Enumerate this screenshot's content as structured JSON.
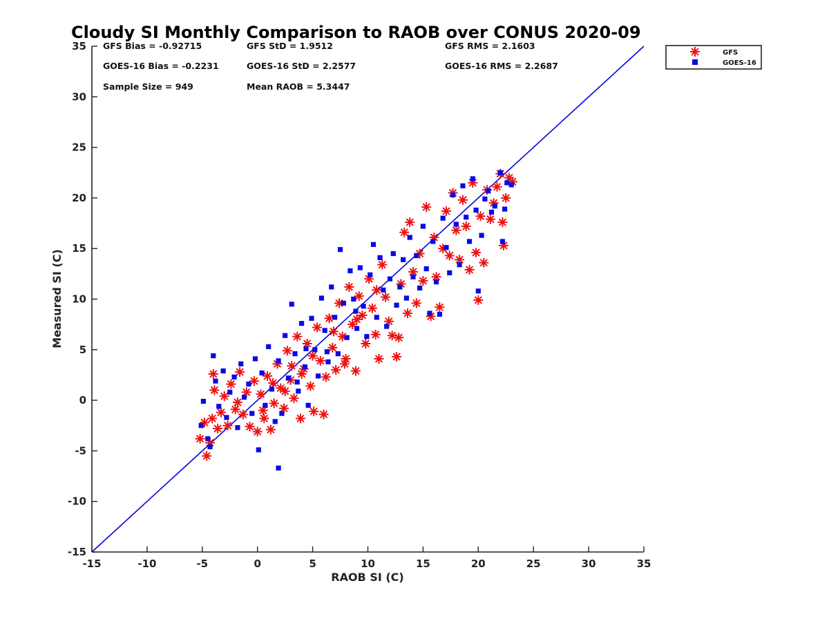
{
  "chart_data": {
    "type": "scatter",
    "title": "Cloudy SI Monthly Comparison to RAOB over CONUS 2020-09",
    "xlabel": "RAOB SI (C)",
    "ylabel": "Measured SI (C)",
    "xlim": [
      -15,
      35
    ],
    "ylim": [
      -15,
      35
    ],
    "xticks": [
      "-15",
      "-10",
      "-5",
      "0",
      "5",
      "10",
      "15",
      "20",
      "25",
      "30",
      "35"
    ],
    "yticks": [
      "-15",
      "-10",
      "-5",
      "0",
      "5",
      "10",
      "15",
      "20",
      "25",
      "30",
      "35"
    ],
    "grid": false,
    "legend_position": "top-right outside",
    "reference_line": {
      "from": [
        -15,
        -15
      ],
      "to": [
        35,
        35
      ],
      "color": "#0000dd"
    },
    "stats": {
      "gfs_bias": "GFS Bias = -0.92715",
      "gfs_std": "GFS StD = 1.9512",
      "gfs_rms": "GFS RMS = 2.1603",
      "goes_bias": "GOES-16 Bias = -0.2231",
      "goes_std": "GOES-16 StD = 2.2577",
      "goes_rms": "GOES-16 RMS = 2.2687",
      "sample_size": "Sample Size = 949",
      "mean_raob": "Mean RAOB = 5.3447"
    },
    "series": [
      {
        "name": "GFS",
        "marker": "asterisk",
        "color": "#ee1111",
        "points": [
          [
            -5.2,
            -3.8
          ],
          [
            -4.8,
            -2.2
          ],
          [
            -4.6,
            -5.5
          ],
          [
            -4.3,
            -4.2
          ],
          [
            -4.1,
            -1.8
          ],
          [
            -4.0,
            2.6
          ],
          [
            -3.9,
            1.0
          ],
          [
            -3.6,
            -2.8
          ],
          [
            -3.3,
            -1.2
          ],
          [
            -3.0,
            0.4
          ],
          [
            -2.7,
            -2.5
          ],
          [
            -2.4,
            1.6
          ],
          [
            -2.0,
            -0.9
          ],
          [
            -1.6,
            2.8
          ],
          [
            -1.3,
            -1.4
          ],
          [
            -1.0,
            0.8
          ],
          [
            -0.7,
            -2.6
          ],
          [
            -0.3,
            1.9
          ],
          [
            0.0,
            -3.1
          ],
          [
            0.3,
            0.6
          ],
          [
            0.6,
            -1.8
          ],
          [
            0.9,
            2.4
          ],
          [
            1.2,
            -2.9
          ],
          [
            1.5,
            -0.3
          ],
          [
            1.8,
            3.6
          ],
          [
            2.1,
            1.2
          ],
          [
            2.4,
            -0.8
          ],
          [
            2.7,
            4.9
          ],
          [
            3.0,
            2.0
          ],
          [
            3.3,
            0.2
          ],
          [
            3.6,
            6.3
          ],
          [
            3.9,
            -1.8
          ],
          [
            4.2,
            3.1
          ],
          [
            4.5,
            5.6
          ],
          [
            4.8,
            1.4
          ],
          [
            5.1,
            -1.1
          ],
          [
            5.4,
            7.2
          ],
          [
            5.7,
            3.9
          ],
          [
            6.0,
            -1.4
          ],
          [
            6.2,
            2.3
          ],
          [
            6.5,
            8.1
          ],
          [
            6.8,
            5.2
          ],
          [
            7.1,
            3.0
          ],
          [
            7.4,
            9.6
          ],
          [
            7.7,
            6.3
          ],
          [
            8.0,
            4.1
          ],
          [
            8.3,
            11.2
          ],
          [
            8.6,
            7.5
          ],
          [
            8.9,
            2.9
          ],
          [
            9.2,
            10.3
          ],
          [
            9.5,
            8.4
          ],
          [
            9.8,
            5.6
          ],
          [
            10.1,
            12.0
          ],
          [
            10.4,
            9.1
          ],
          [
            10.7,
            6.5
          ],
          [
            11.0,
            4.1
          ],
          [
            11.3,
            13.4
          ],
          [
            11.6,
            10.2
          ],
          [
            11.9,
            7.8
          ],
          [
            12.2,
            6.4
          ],
          [
            12.6,
            4.3
          ],
          [
            12.8,
            6.2
          ],
          [
            13.0,
            11.5
          ],
          [
            13.3,
            16.6
          ],
          [
            13.6,
            8.6
          ],
          [
            13.8,
            17.6
          ],
          [
            14.1,
            12.7
          ],
          [
            14.4,
            9.6
          ],
          [
            14.7,
            14.5
          ],
          [
            15.0,
            11.8
          ],
          [
            15.3,
            19.1
          ],
          [
            15.7,
            8.3
          ],
          [
            16.0,
            16.1
          ],
          [
            16.2,
            12.2
          ],
          [
            16.5,
            9.2
          ],
          [
            16.8,
            15.0
          ],
          [
            17.1,
            18.7
          ],
          [
            17.4,
            14.3
          ],
          [
            17.7,
            20.5
          ],
          [
            18.0,
            16.8
          ],
          [
            18.3,
            13.9
          ],
          [
            18.6,
            19.8
          ],
          [
            18.9,
            17.2
          ],
          [
            19.2,
            12.9
          ],
          [
            19.5,
            21.5
          ],
          [
            19.8,
            14.6
          ],
          [
            20.0,
            9.9
          ],
          [
            20.2,
            18.2
          ],
          [
            20.5,
            13.6
          ],
          [
            20.8,
            20.8
          ],
          [
            21.1,
            17.9
          ],
          [
            21.4,
            19.5
          ],
          [
            21.7,
            21.1
          ],
          [
            22.0,
            22.4
          ],
          [
            22.2,
            17.6
          ],
          [
            22.3,
            15.3
          ],
          [
            22.5,
            20.0
          ],
          [
            22.8,
            22.0
          ],
          [
            23.1,
            21.6
          ],
          [
            7.9,
            3.6
          ],
          [
            2.5,
            0.9
          ],
          [
            3.1,
            3.4
          ],
          [
            4.0,
            2.6
          ],
          [
            5.0,
            4.4
          ],
          [
            1.4,
            1.7
          ],
          [
            6.9,
            6.8
          ],
          [
            9.0,
            8.0
          ],
          [
            10.8,
            10.9
          ],
          [
            0.5,
            -1.0
          ],
          [
            -1.8,
            -0.2
          ]
        ]
      },
      {
        "name": "GOES-16",
        "marker": "square",
        "color": "#0a0ae6",
        "points": [
          [
            -5.1,
            -2.5
          ],
          [
            -4.9,
            -0.1
          ],
          [
            -4.5,
            -3.8
          ],
          [
            -4.3,
            -4.6
          ],
          [
            -4.0,
            4.4
          ],
          [
            -3.8,
            1.9
          ],
          [
            -3.5,
            -0.6
          ],
          [
            -3.1,
            2.9
          ],
          [
            -2.8,
            -1.7
          ],
          [
            -2.5,
            0.8
          ],
          [
            -2.1,
            2.3
          ],
          [
            -1.8,
            -2.7
          ],
          [
            -1.5,
            3.6
          ],
          [
            -1.2,
            0.3
          ],
          [
            -0.8,
            1.6
          ],
          [
            -0.5,
            -1.3
          ],
          [
            -0.2,
            4.1
          ],
          [
            0.1,
            -4.9
          ],
          [
            0.4,
            2.7
          ],
          [
            0.7,
            -0.5
          ],
          [
            1.0,
            5.3
          ],
          [
            1.3,
            1.1
          ],
          [
            1.6,
            -2.1
          ],
          [
            1.9,
            3.9
          ],
          [
            2.2,
            -1.3
          ],
          [
            2.5,
            6.4
          ],
          [
            2.8,
            2.2
          ],
          [
            3.1,
            9.5
          ],
          [
            3.4,
            4.6
          ],
          [
            3.7,
            0.9
          ],
          [
            4.0,
            7.6
          ],
          [
            4.3,
            3.3
          ],
          [
            4.6,
            -0.5
          ],
          [
            4.9,
            8.1
          ],
          [
            5.2,
            5.0
          ],
          [
            5.5,
            2.4
          ],
          [
            5.8,
            10.1
          ],
          [
            6.1,
            6.9
          ],
          [
            6.4,
            3.8
          ],
          [
            6.7,
            11.2
          ],
          [
            7.0,
            8.2
          ],
          [
            7.3,
            4.6
          ],
          [
            7.5,
            14.9
          ],
          [
            7.8,
            9.6
          ],
          [
            8.1,
            6.2
          ],
          [
            8.4,
            12.8
          ],
          [
            8.7,
            10.0
          ],
          [
            9.0,
            7.1
          ],
          [
            9.3,
            13.1
          ],
          [
            9.6,
            9.3
          ],
          [
            9.9,
            6.3
          ],
          [
            10.2,
            12.4
          ],
          [
            10.5,
            15.4
          ],
          [
            10.8,
            8.2
          ],
          [
            11.1,
            14.1
          ],
          [
            11.4,
            10.9
          ],
          [
            11.7,
            7.3
          ],
          [
            12.0,
            12.0
          ],
          [
            12.3,
            14.5
          ],
          [
            12.6,
            9.4
          ],
          [
            12.9,
            11.2
          ],
          [
            13.2,
            13.9
          ],
          [
            13.5,
            10.1
          ],
          [
            13.8,
            16.1
          ],
          [
            14.1,
            12.2
          ],
          [
            14.4,
            14.3
          ],
          [
            14.7,
            11.1
          ],
          [
            15.0,
            17.2
          ],
          [
            15.3,
            13.0
          ],
          [
            15.6,
            8.6
          ],
          [
            15.9,
            15.7
          ],
          [
            16.2,
            11.7
          ],
          [
            16.5,
            8.5
          ],
          [
            16.8,
            18.0
          ],
          [
            17.1,
            15.1
          ],
          [
            17.4,
            12.6
          ],
          [
            17.7,
            20.3
          ],
          [
            18.0,
            17.4
          ],
          [
            18.3,
            13.4
          ],
          [
            18.6,
            21.2
          ],
          [
            18.9,
            18.1
          ],
          [
            19.2,
            15.7
          ],
          [
            19.5,
            21.9
          ],
          [
            19.8,
            18.8
          ],
          [
            20.0,
            10.8
          ],
          [
            20.3,
            16.3
          ],
          [
            20.6,
            19.9
          ],
          [
            20.9,
            20.7
          ],
          [
            21.2,
            18.6
          ],
          [
            21.5,
            19.2
          ],
          [
            22.0,
            22.5
          ],
          [
            22.4,
            18.9
          ],
          [
            22.6,
            21.5
          ],
          [
            23.0,
            21.3
          ],
          [
            1.9,
            -6.7
          ],
          [
            22.2,
            15.7
          ],
          [
            3.6,
            1.8
          ],
          [
            4.4,
            5.1
          ],
          [
            6.3,
            4.8
          ],
          [
            8.9,
            8.8
          ]
        ]
      }
    ]
  }
}
